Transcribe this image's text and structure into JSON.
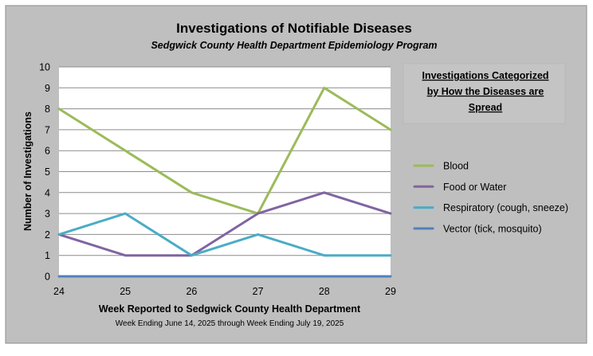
{
  "chart_data": {
    "type": "line",
    "title": "Investigations of Notifiable Diseases",
    "subtitle": "Sedgwick County Health Department Epidemiology Program",
    "xlabel": "Week Reported to Sedgwick County Health Department",
    "xlabel_sub": "Week Ending  June 14, 2025 through Week Ending  July 19, 2025",
    "ylabel": "Number of Investigations",
    "categories": [
      "24",
      "25",
      "26",
      "27",
      "28",
      "29"
    ],
    "ylim": [
      0,
      10
    ],
    "yticks": [
      "0",
      "1",
      "2",
      "3",
      "4",
      "5",
      "6",
      "7",
      "8",
      "9",
      "10"
    ],
    "grid": "horizontal",
    "legend_title": [
      "Investigations Categorized",
      "by How the Diseases are",
      "Spread"
    ],
    "legend_position": "right",
    "series": [
      {
        "name": "Blood",
        "color": "#9BBB59",
        "values": [
          8,
          6,
          4,
          3,
          9,
          7
        ]
      },
      {
        "name": "Food or Water",
        "color": "#8064A2",
        "values": [
          2,
          1,
          1,
          3,
          4,
          3
        ]
      },
      {
        "name": "Respiratory (cough, sneeze)",
        "color": "#4BACC6",
        "values": [
          2,
          3,
          1,
          2,
          1,
          1
        ]
      },
      {
        "name": "Vector (tick, mosquito)",
        "color": "#4F81BD",
        "values": [
          0,
          0,
          0,
          0,
          0,
          0
        ]
      }
    ]
  }
}
